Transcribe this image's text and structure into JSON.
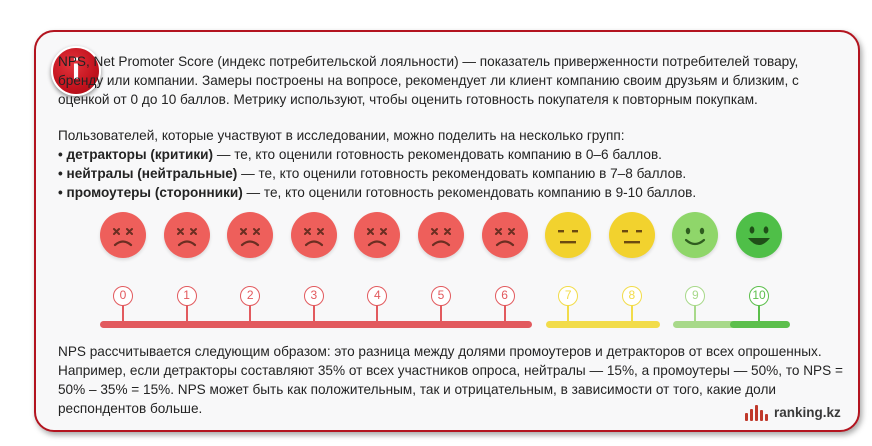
{
  "paragraph1": [
    "NPS, Net Promoter Score (индекс потребительской лояльности) — показатель приверженности потребителей товару,",
    "бренду или компании. Замеры построены на вопросе, рекомендует ли клиент компанию своим друзьям и близким, с",
    "оценкой от 0 до 10 баллов. Метрику используют, чтобы оценить готовность покупателя к повторным покупкам."
  ],
  "groups_intro": "Пользователей, которые участвуют в исследовании, можно поделить на несколько групп:",
  "groups": [
    {
      "bullet": "•",
      "term": "детракторы (критики)",
      "desc": " — те, кто оценили готовность рекомендовать компанию в 0–6 баллов."
    },
    {
      "bullet": "•",
      "term": "нейтралы (нейтральные)",
      "desc": " — те, кто оценили готовность рекомендовать компанию в 7–8 баллов."
    },
    {
      "bullet": "•",
      "term": "промоутеры (сторонники)",
      "desc": " — те, кто оценили готовность рекомендовать компанию в 9-10 баллов."
    }
  ],
  "paragraph3": [
    "NPS рассчитывается следующим образом: это разница между долями промоутеров и детракторов от всех опрошенных.",
    "Например, если детракторы составляют 35% от всех участников опроса, нейтралы — 15%, а промоутеры — 50%, то NPS =",
    "50% – 35% = 15%. NPS может быть как положительным, так и отрицательным, в зависимости от того, какие доли",
    "респондентов больше."
  ],
  "scale_labels": [
    "0",
    "1",
    "2",
    "3",
    "4",
    "5",
    "6",
    "7",
    "8",
    "9",
    "10"
  ],
  "colors": {
    "detractor": "#ee5f5b",
    "detractor_bar": "#e25a5e",
    "neutral": "#f2d22e",
    "neutral_bar": "#f2dc4a",
    "promoter_light": "#8fd66a",
    "promoter": "#4fbf48",
    "promoter_bar_light": "#a8d98a",
    "promoter_bar": "#5cbf4c",
    "border": "#b3141f"
  },
  "logo_text": "ranking.kz",
  "badge_glyph": "i"
}
